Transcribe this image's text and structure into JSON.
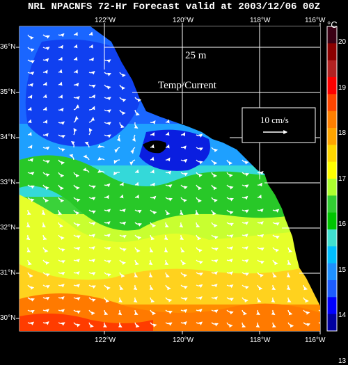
{
  "title": "NRL NPACNFS 72-Hr Forecast valid at 2003/12/06 00Z",
  "depth_label": "25 m",
  "field_label": "Temp/Current",
  "scale_label": "10 cm/s",
  "units": "°C",
  "lon_labels_top": [
    "122°W",
    "120°W",
    "118°W",
    "116°W"
  ],
  "lon_labels_bottom": [
    "122°W",
    "120°W",
    "118°W",
    "116°W"
  ],
  "lat_labels": [
    "36°N",
    "35°N",
    "34°N",
    "33°N",
    "32°N",
    "31°N",
    "30°N"
  ],
  "colorbar": {
    "ticks": [
      "20",
      "19",
      "18",
      "17",
      "16",
      "15",
      "14",
      "13"
    ],
    "colors": [
      "#3a0014",
      "#8b0000",
      "#b22222",
      "#ff0000",
      "#ff4500",
      "#ff7f00",
      "#ffa500",
      "#ffd700",
      "#ffff00",
      "#adff2f",
      "#32cd32",
      "#00c400",
      "#40e0d0",
      "#00bfff",
      "#1e90ff",
      "#1c5cff",
      "#0000ff",
      "#0000a0"
    ]
  },
  "colors": {
    "background": "#000000",
    "land": "#000000",
    "grid": "#ffffff"
  }
}
